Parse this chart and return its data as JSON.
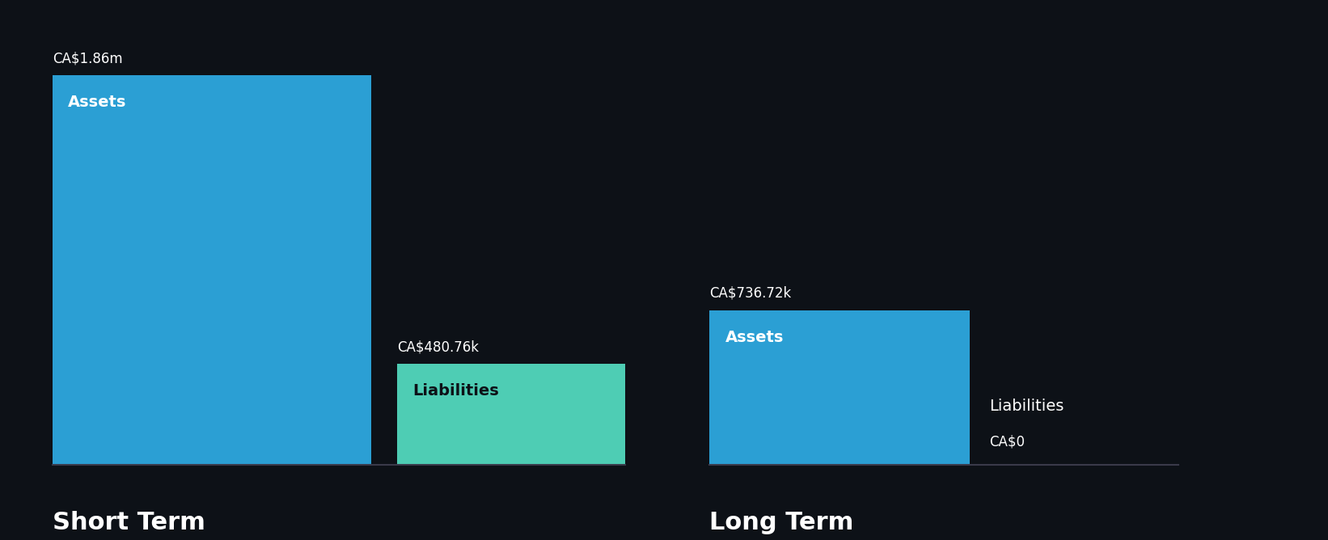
{
  "background_color": "#0d1117",
  "short_term": {
    "assets_value": 1860000,
    "liabilities_value": 480760,
    "assets_label": "Assets",
    "liabilities_label": "Liabilities",
    "assets_top_label": "CA$1.86m",
    "liabilities_top_label": "CA$480.76k",
    "assets_color": "#2b9fd4",
    "liabilities_color": "#4ecdb4",
    "section_label": "Short Term"
  },
  "long_term": {
    "assets_value": 736720,
    "liabilities_value": 0,
    "assets_label": "Assets",
    "liabilities_label": "Liabilities",
    "assets_top_label": "CA$736.72k",
    "liabilities_top_label": "CA$0",
    "assets_color": "#2b9fd4",
    "liabilities_color": "#4ecdb4",
    "section_label": "Long Term"
  },
  "max_value": 1860000,
  "text_color": "#ffffff",
  "liab_text_color": "#0d1117",
  "section_label_fontsize": 22,
  "bar_label_fontsize": 14,
  "value_label_fontsize": 12
}
